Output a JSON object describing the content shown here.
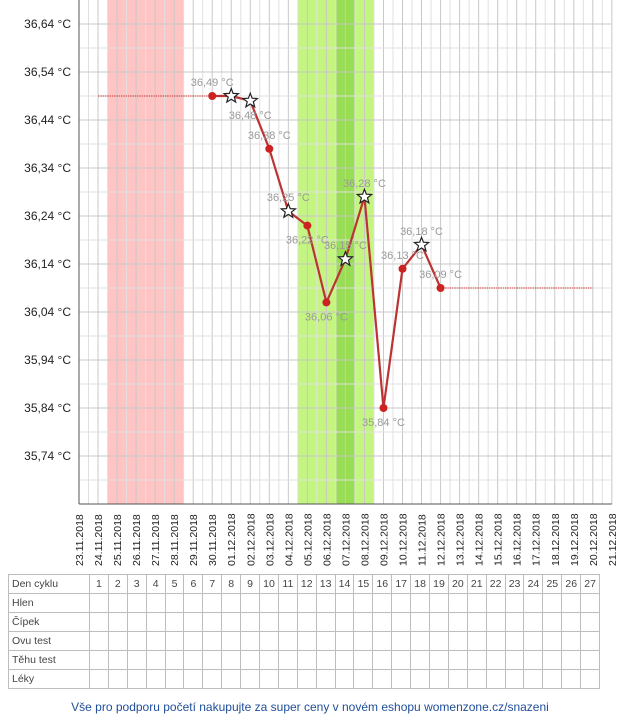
{
  "chart_data": {
    "type": "line",
    "ylim": [
      35.64,
      36.69
    ],
    "yticks": [
      35.74,
      35.84,
      35.94,
      36.04,
      36.14,
      36.24,
      36.34,
      36.44,
      36.54,
      36.64
    ],
    "ytick_labels": [
      "35,74 °C",
      "35,84 °C",
      "35,94 °C",
      "36,04 °C",
      "36,14 °C",
      "36,24 °C",
      "36,34 °C",
      "36,44 °C",
      "36,54 °C",
      "36,64 °C"
    ],
    "x_dates": [
      "23.11.2018",
      "24.11.2018",
      "25.11.2018",
      "26.11.2018",
      "27.11.2018",
      "28.11.2018",
      "29.11.2018",
      "30.11.2018",
      "01.12.2018",
      "02.12.2018",
      "03.12.2018",
      "04.12.2018",
      "05.12.2018",
      "06.12.2018",
      "07.12.2018",
      "08.12.2018",
      "09.12.2018",
      "10.12.2018",
      "11.12.2018",
      "12.12.2018",
      "13.12.2018",
      "14.12.2018",
      "15.12.2018",
      "16.12.2018",
      "17.12.2018",
      "18.12.2018",
      "19.12.2018",
      "20.12.2018",
      "21.12.2018"
    ],
    "grid": true,
    "bands": [
      {
        "kind": "menstruation",
        "from": "24.11.2018",
        "to": "28.11.2018",
        "color": "#ffc4c4"
      },
      {
        "kind": "fertile",
        "from": "04.12.2018",
        "to": "08.12.2018",
        "color": "#c4f580"
      },
      {
        "kind": "ovulation",
        "from": "06.12.2018",
        "to": "06.12.2018",
        "color": "#99dd55"
      }
    ],
    "coverline_left": {
      "value": 36.49,
      "from": "24.11.2018",
      "to": "30.11.2018"
    },
    "coverline_right": {
      "value": 36.09,
      "from": "12.12.2018",
      "to": "20.12.2018"
    },
    "series": [
      {
        "line_color": "#bb3333",
        "points": [
          {
            "date": "30.11.2018",
            "value": 36.49,
            "label": "36,49 °C",
            "marker": "dot"
          },
          {
            "date": "01.12.2018",
            "value": 36.49,
            "label": "",
            "marker": "star"
          },
          {
            "date": "02.12.2018",
            "value": 36.48,
            "label": "36,48 °C",
            "marker": "star"
          },
          {
            "date": "03.12.2018",
            "value": 36.38,
            "label": "36,38 °C",
            "marker": "dot"
          },
          {
            "date": "04.12.2018",
            "value": 36.25,
            "label": "36,25 °C",
            "marker": "star"
          },
          {
            "date": "05.12.2018",
            "value": 36.22,
            "label": "36,22 °C",
            "marker": "dot"
          },
          {
            "date": "06.12.2018",
            "value": 36.06,
            "label": "36,06 °C",
            "marker": "dot"
          },
          {
            "date": "07.12.2018",
            "value": 36.15,
            "label": "36,15 °C",
            "marker": "star"
          },
          {
            "date": "08.12.2018",
            "value": 36.28,
            "label": "36,28 °C",
            "marker": "star"
          },
          {
            "date": "09.12.2018",
            "value": 35.84,
            "label": "35,84 °C",
            "marker": "dot"
          },
          {
            "date": "10.12.2018",
            "value": 36.13,
            "label": "36,13 °C",
            "marker": "dot"
          },
          {
            "date": "11.12.2018",
            "value": 36.18,
            "label": "36,18 °C",
            "marker": "star"
          },
          {
            "date": "12.12.2018",
            "value": 36.09,
            "label": "36,09 °C",
            "marker": "dot"
          }
        ]
      }
    ]
  },
  "table": {
    "rows": [
      {
        "label": "Den cyklu",
        "cells": [
          "1",
          "2",
          "3",
          "4",
          "5",
          "6",
          "7",
          "8",
          "9",
          "10",
          "11",
          "12",
          "13",
          "14",
          "15",
          "16",
          "17",
          "18",
          "19",
          "20",
          "21",
          "22",
          "23",
          "24",
          "25",
          "26",
          "27"
        ]
      },
      {
        "label": "Hlen",
        "cells": []
      },
      {
        "label": "Čípek",
        "cells": []
      },
      {
        "label": "Ovu test",
        "cells": []
      },
      {
        "label": "Těhu test",
        "cells": []
      },
      {
        "label": "Léky",
        "cells": []
      }
    ]
  },
  "footer": {
    "text": "Vše pro podporu početí nakupujte za super ceny v novém eshopu womenzone.cz/snazeni",
    "color": "#1f4e99"
  }
}
